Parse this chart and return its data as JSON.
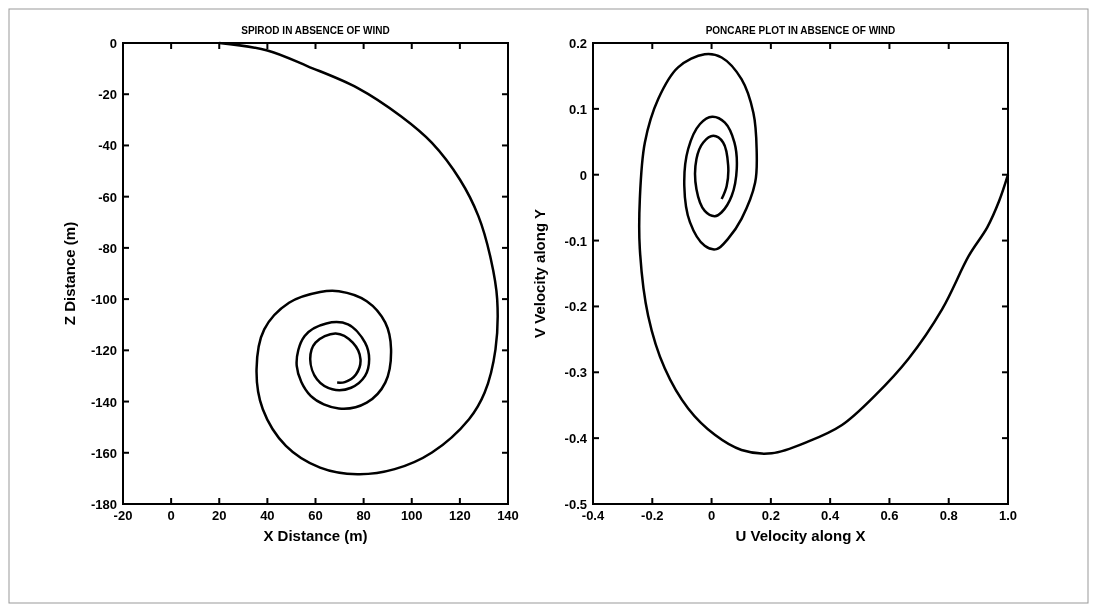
{
  "chart_data": [
    {
      "type": "line",
      "title": "SPIROD IN ABSENCE OF WIND",
      "xlabel": "X Distance (m)",
      "ylabel": "Z Distance (m)",
      "xlim": [
        -20,
        140
      ],
      "ylim": [
        -180,
        0
      ],
      "xticks": [
        -20,
        0,
        20,
        40,
        60,
        80,
        100,
        120,
        140
      ],
      "yticks": [
        -180,
        -160,
        -140,
        -120,
        -100,
        -80,
        -60,
        -40,
        -20,
        0
      ],
      "series": [
        {
          "color": "#000000",
          "x": [
            20,
            40,
            56.8,
            77.4,
            95.5,
            108.4,
            120,
            127.7,
            132.9,
            135.5,
            134.8,
            130.3,
            123.8,
            108.4,
            92.9,
            77.4,
            61.9,
            47.7,
            38.1,
            35.5,
            38.7,
            49,
            61.9,
            69.7,
            81.3,
            89,
            91.4,
            89,
            81.3,
            69.7,
            58,
            52.2,
            55.5,
            64.5,
            73.5,
            80.6,
            82.3,
            80.6,
            74.8,
            67,
            60.6,
            57.8,
            60,
            68.4,
            75.5,
            78.7,
            76.8,
            72.2,
            69
          ],
          "values": [
            0,
            -2.9,
            -9.1,
            -17.5,
            -28.6,
            -39,
            -53.3,
            -67.6,
            -84.5,
            -100,
            -119.6,
            -136.5,
            -146.9,
            -159.9,
            -166.4,
            -168.4,
            -165.8,
            -157.3,
            -143,
            -127.4,
            -111.8,
            -101.4,
            -97.2,
            -96.9,
            -100.8,
            -109.2,
            -119.6,
            -132.6,
            -140.4,
            -142.7,
            -137.8,
            -126.1,
            -114.4,
            -109.5,
            -109.9,
            -117,
            -123.5,
            -130,
            -134.6,
            -135.2,
            -131.3,
            -123.5,
            -117,
            -113.4,
            -117,
            -123.5,
            -129.4,
            -132.4,
            -132.6
          ]
        }
      ]
    },
    {
      "type": "line",
      "title": "PONCARE PLOT IN ABSENCE OF WIND",
      "xlabel": "U Velocity along X",
      "ylabel": "V Velocity along Y",
      "xlim": [
        -0.4,
        1.0
      ],
      "ylim": [
        -0.5,
        0.2
      ],
      "xticks": [
        -0.4,
        -0.2,
        0,
        0.2,
        0.4,
        0.6,
        0.8,
        {
          "value": 1,
          "label": "1.0"
        }
      ],
      "yticks": [
        -0.5,
        -0.4,
        -0.3,
        -0.2,
        -0.1,
        0,
        0.1,
        0.2
      ],
      "series": [
        {
          "color": "#000000",
          "x": [
            1.0,
            0.97,
            0.93,
            0.868,
            0.778,
            0.665,
            0.552,
            0.44,
            0.327,
            0.203,
            0.101,
            0.011,
            -0.079,
            -0.158,
            -0.214,
            -0.242,
            -0.242,
            -0.225,
            -0.18,
            -0.113,
            -0.023,
            0.034,
            0.101,
            0.141,
            0.152,
            0.147,
            0.101,
            0.056,
            0.017,
            -0.023,
            -0.073,
            -0.092,
            -0.079,
            -0.039,
            0.002,
            0.045,
            0.077,
            0.085,
            0.068,
            0.034,
            0.011,
            -0.023,
            -0.051,
            -0.051,
            -0.028,
            0.006,
            0.039,
            0.056,
            0.051,
            0.034
          ],
          "values": [
            0,
            -0.04,
            -0.08,
            -0.123,
            -0.204,
            -0.279,
            -0.335,
            -0.38,
            -0.405,
            -0.423,
            -0.418,
            -0.395,
            -0.355,
            -0.294,
            -0.214,
            -0.113,
            -0.037,
            0.049,
            0.115,
            0.163,
            0.183,
            0.178,
            0.145,
            0.094,
            0.039,
            -0.012,
            -0.067,
            -0.097,
            -0.113,
            -0.108,
            -0.072,
            -0.017,
            0.039,
            0.077,
            0.088,
            0.079,
            0.049,
            0.009,
            -0.032,
            -0.057,
            -0.063,
            -0.055,
            -0.022,
            0.024,
            0.049,
            0.059,
            0.049,
            0.014,
            -0.017,
            -0.037
          ]
        }
      ]
    }
  ]
}
